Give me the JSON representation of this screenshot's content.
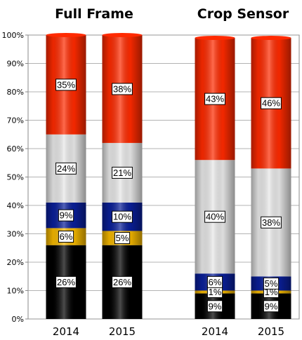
{
  "chart_data": {
    "type": "bar",
    "stacked": true,
    "percent_stacked": true,
    "groups": [
      {
        "title": "Full Frame",
        "categories": [
          "2014",
          "2015"
        ]
      },
      {
        "title": "Crop Sensor",
        "categories": [
          "2014",
          "2015"
        ]
      }
    ],
    "categories": [
      "2014",
      "2015",
      "2014",
      "2015"
    ],
    "y_ticks": [
      "0%",
      "10%",
      "20%",
      "30%",
      "40%",
      "50%",
      "60%",
      "70%",
      "80%",
      "90%",
      "100%"
    ],
    "ylim": [
      0,
      100
    ],
    "grid": true,
    "legend": "none",
    "series": [
      {
        "color": "#000000",
        "values": [
          26,
          26,
          9,
          9
        ],
        "labels": [
          "26%",
          "26%",
          "9%",
          "9%"
        ]
      },
      {
        "color": "#f5b800",
        "values": [
          6,
          5,
          1,
          1
        ],
        "labels": [
          "6%",
          "5%",
          "1%",
          "1%"
        ]
      },
      {
        "color": "#0a1f99",
        "values": [
          9,
          10,
          6,
          5
        ],
        "labels": [
          "9%",
          "10%",
          "6%",
          "5%"
        ]
      },
      {
        "color": "#e8e8e8",
        "values": [
          24,
          21,
          40,
          38
        ],
        "labels": [
          "24%",
          "21%",
          "40%",
          "38%"
        ]
      },
      {
        "color": "#ff2a00",
        "values": [
          35,
          38,
          43,
          46
        ],
        "labels": [
          "35%",
          "38%",
          "43%",
          "46%"
        ]
      }
    ]
  }
}
